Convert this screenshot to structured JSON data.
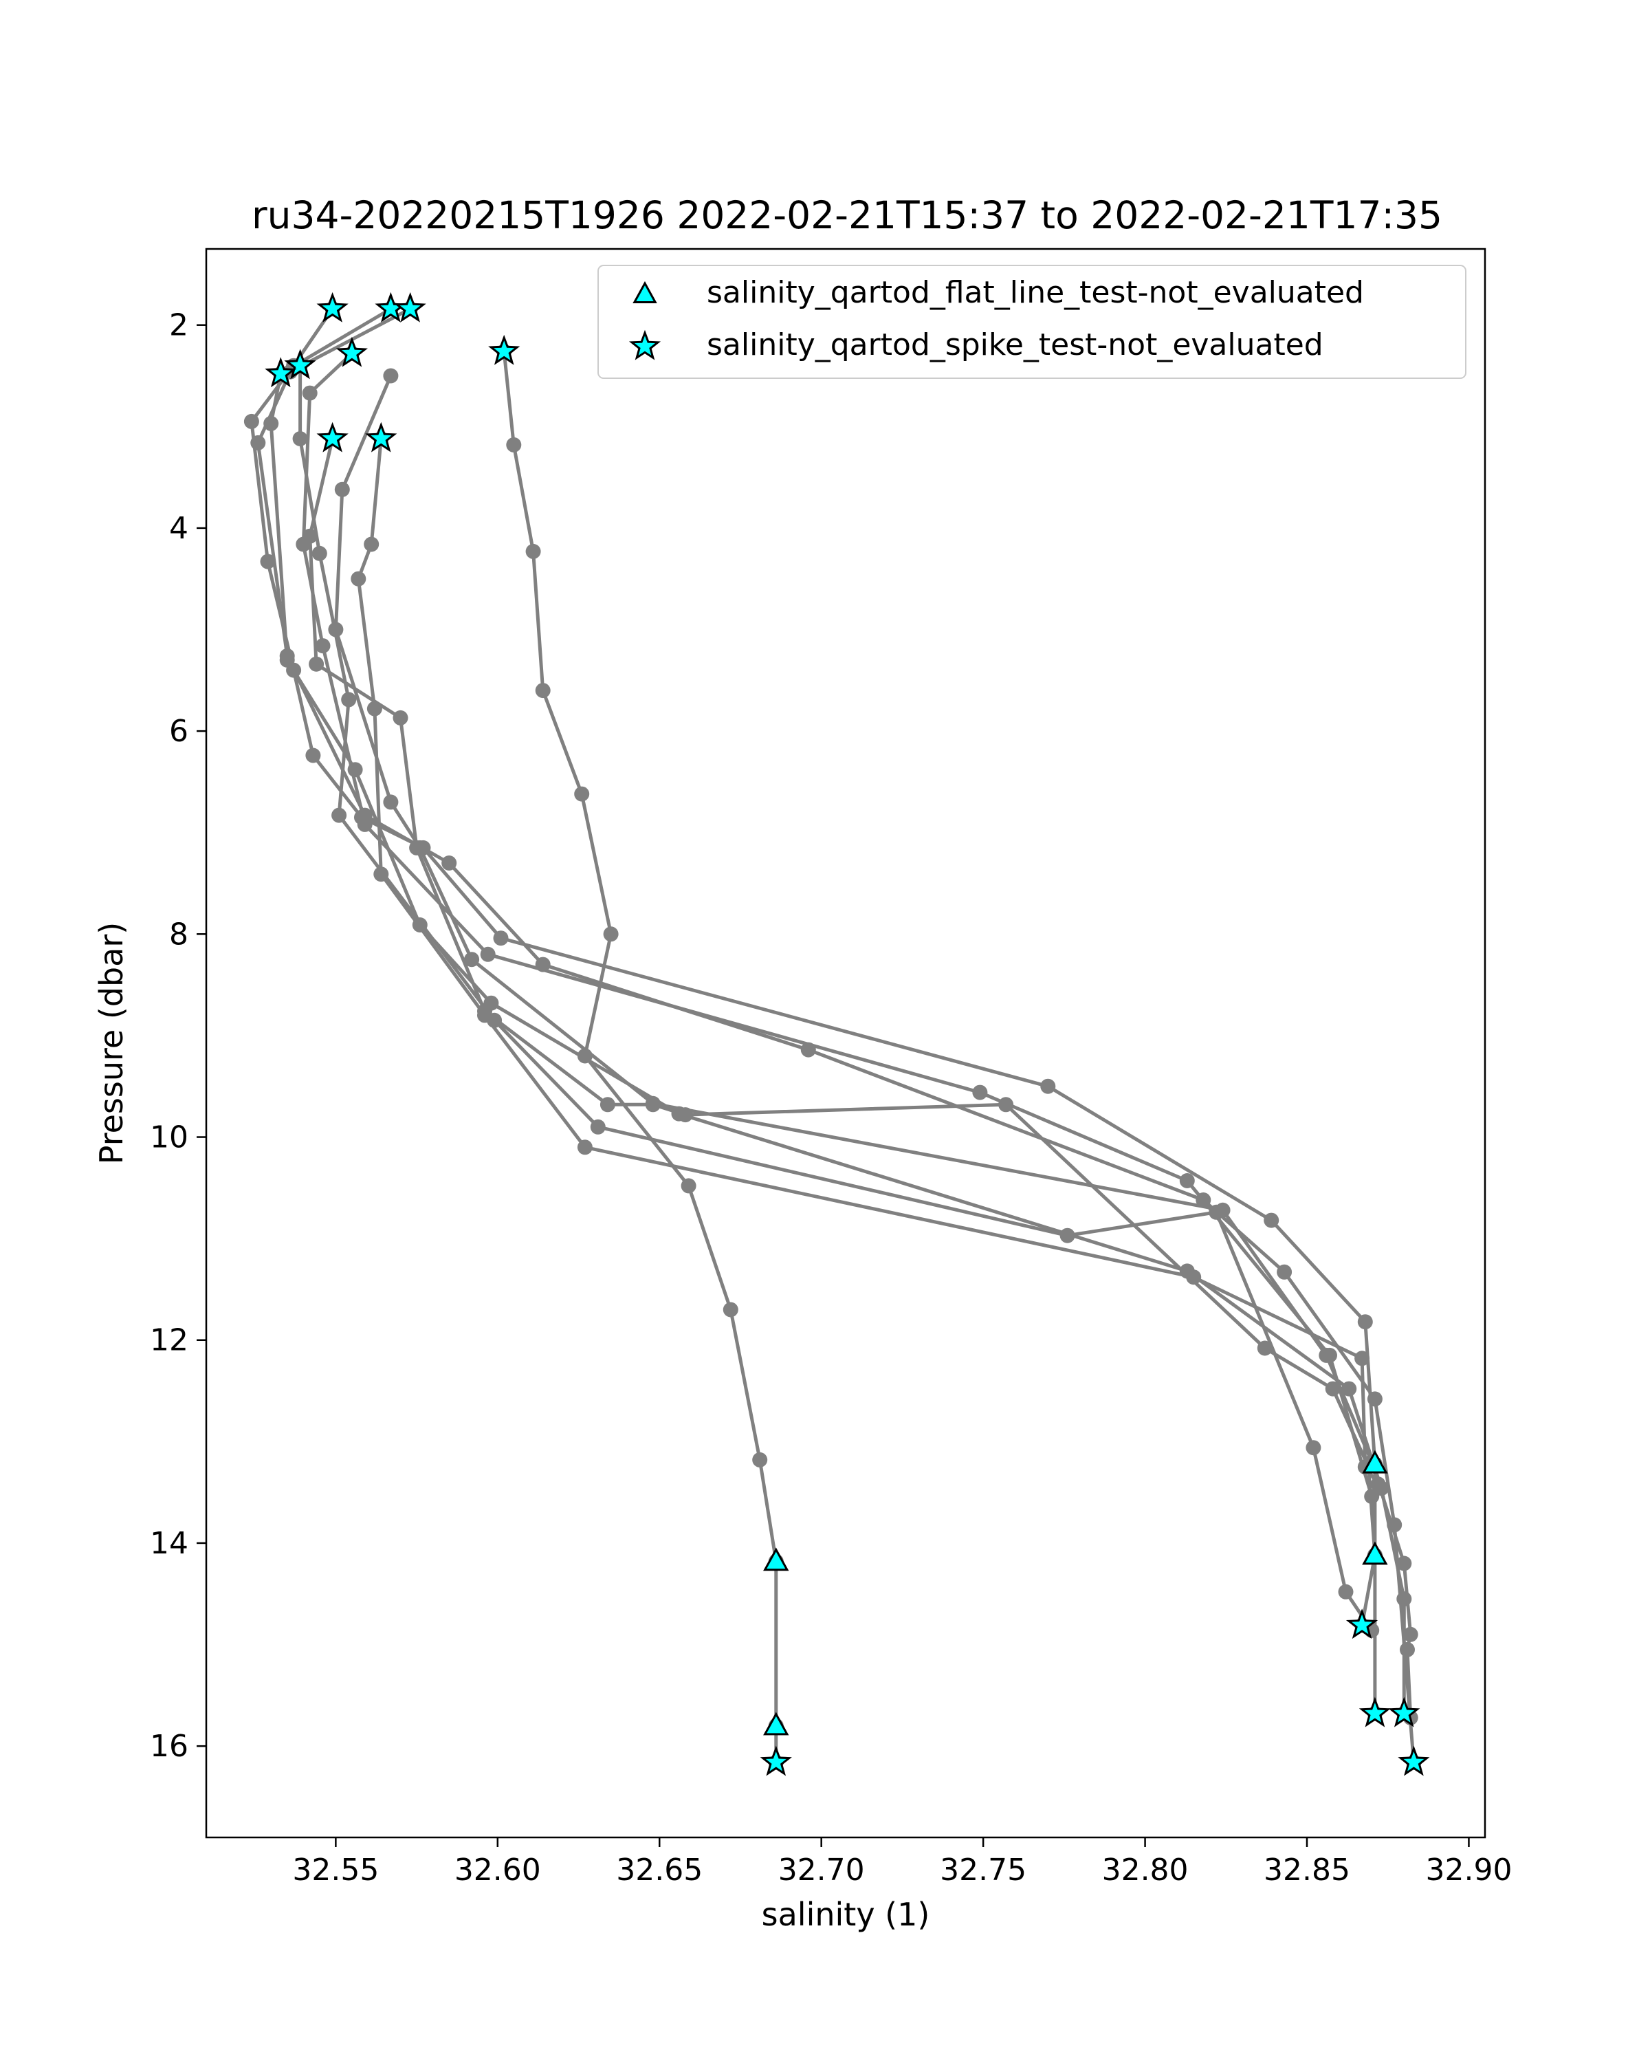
{
  "chart_data": {
    "type": "line",
    "title": "ru34-20220215T1926 2022-02-21T15:37 to 2022-02-21T17:35",
    "xlabel": "salinity (1)",
    "ylabel": "Pressure (dbar)",
    "xlim": [
      32.51,
      32.905
    ],
    "ylim": [
      16.9,
      1.25
    ],
    "y_inverted": true,
    "grid": false,
    "legend_placement": "top-right",
    "xticks": [
      32.55,
      32.6,
      32.65,
      32.7,
      32.75,
      32.8,
      32.85,
      32.9
    ],
    "xtick_labels": [
      "32.55",
      "32.60",
      "32.65",
      "32.70",
      "32.75",
      "32.80",
      "32.85",
      "32.90"
    ],
    "yticks": [
      2,
      4,
      6,
      8,
      10,
      12,
      14,
      16
    ],
    "ytick_labels": [
      "2",
      "4",
      "6",
      "8",
      "10",
      "12",
      "14",
      "16"
    ],
    "colors": {
      "profile_line": "#808080",
      "marker_fill": "#00ffff",
      "marker_edge": "#000000"
    },
    "legend": [
      {
        "label": "salinity_qartod_flat_line_test-not_evaluated",
        "marker": "triangle"
      },
      {
        "label": "salinity_qartod_spike_test-not_evaluated",
        "marker": "star"
      }
    ],
    "series": [
      {
        "values": [
          [
            32.549,
            1.84
          ],
          [
            32.537,
            2.4
          ],
          [
            32.524,
            2.95
          ],
          [
            32.529,
            4.33
          ],
          [
            32.537,
            5.4
          ],
          [
            32.543,
            6.24
          ],
          [
            32.558,
            6.85
          ],
          [
            32.577,
            7.15
          ],
          [
            32.601,
            8.04
          ],
          [
            32.77,
            9.5
          ],
          [
            32.839,
            10.82
          ],
          [
            32.868,
            11.82
          ],
          [
            32.871,
            13.22
          ],
          [
            32.871,
            15.68
          ]
        ]
      },
      {
        "values": [
          [
            32.567,
            1.84
          ],
          [
            32.533,
            2.48
          ],
          [
            32.53,
            2.97
          ],
          [
            32.535,
            5.3
          ],
          [
            32.556,
            6.38
          ],
          [
            32.576,
            7.91
          ],
          [
            32.598,
            8.68
          ],
          [
            32.656,
            9.77
          ],
          [
            32.813,
            11.32
          ],
          [
            32.863,
            12.48
          ],
          [
            32.873,
            13.46
          ],
          [
            32.88,
            14.55
          ],
          [
            32.88,
            15.68
          ]
        ]
      },
      {
        "values": [
          [
            32.573,
            1.84
          ],
          [
            32.536,
            2.46
          ],
          [
            32.526,
            3.16
          ],
          [
            32.535,
            5.26
          ],
          [
            32.559,
            6.83
          ],
          [
            32.585,
            7.3
          ],
          [
            32.614,
            8.3
          ],
          [
            32.696,
            9.14
          ],
          [
            32.818,
            10.62
          ],
          [
            32.843,
            11.33
          ],
          [
            32.871,
            12.58
          ],
          [
            32.877,
            13.82
          ],
          [
            32.883,
            16.16
          ]
        ]
      },
      {
        "values": [
          [
            32.555,
            2.28
          ],
          [
            32.542,
            2.67
          ],
          [
            32.54,
            4.16
          ],
          [
            32.546,
            5.16
          ],
          [
            32.559,
            6.92
          ],
          [
            32.597,
            8.2
          ],
          [
            32.749,
            9.56
          ],
          [
            32.813,
            10.43
          ],
          [
            32.857,
            12.15
          ],
          [
            32.87,
            13.54
          ],
          [
            32.871,
            14.12
          ]
        ]
      },
      {
        "values": [
          [
            32.567,
            2.5
          ],
          [
            32.552,
            3.62
          ],
          [
            32.55,
            5.0
          ],
          [
            32.567,
            6.7
          ],
          [
            32.576,
            7.15
          ],
          [
            32.592,
            8.25
          ],
          [
            32.648,
            9.67
          ],
          [
            32.824,
            10.72
          ],
          [
            32.856,
            12.15
          ],
          [
            32.87,
            13.2
          ],
          [
            32.88,
            14.2
          ],
          [
            32.882,
            14.9
          ],
          [
            32.881,
            15.05
          ],
          [
            32.882,
            15.72
          ]
        ]
      },
      {
        "values": [
          [
            32.539,
            2.4
          ],
          [
            32.539,
            3.12
          ],
          [
            32.545,
            4.25
          ],
          [
            32.554,
            5.69
          ],
          [
            32.551,
            6.83
          ],
          [
            32.599,
            8.85
          ],
          [
            32.631,
            9.9
          ],
          [
            32.776,
            10.97
          ],
          [
            32.822,
            10.74
          ],
          [
            32.852,
            13.06
          ],
          [
            32.862,
            14.48
          ],
          [
            32.87,
            14.86
          ]
        ]
      },
      {
        "values": [
          [
            32.549,
            3.12
          ],
          [
            32.542,
            4.08
          ],
          [
            32.544,
            5.34
          ],
          [
            32.57,
            5.87
          ],
          [
            32.575,
            7.15
          ],
          [
            32.596,
            8.76
          ],
          [
            32.634,
            9.68
          ],
          [
            32.648,
            9.68
          ],
          [
            32.658,
            9.78
          ],
          [
            32.757,
            9.68
          ],
          [
            32.837,
            12.08
          ],
          [
            32.858,
            12.48
          ],
          [
            32.869,
            13.25
          ],
          [
            32.871,
            14.12
          ],
          [
            32.867,
            14.81
          ]
        ]
      },
      {
        "values": [
          [
            32.564,
            3.12
          ],
          [
            32.561,
            4.16
          ],
          [
            32.557,
            4.5
          ],
          [
            32.562,
            5.78
          ],
          [
            32.564,
            7.41
          ],
          [
            32.596,
            8.8
          ],
          [
            32.627,
            10.1
          ],
          [
            32.815,
            11.38
          ],
          [
            32.867,
            12.18
          ],
          [
            32.868,
            13.25
          ],
          [
            32.872,
            13.42
          ]
        ]
      },
      {
        "values": [
          [
            32.602,
            2.26
          ],
          [
            32.605,
            3.18
          ],
          [
            32.611,
            4.23
          ],
          [
            32.614,
            5.6
          ],
          [
            32.626,
            6.62
          ],
          [
            32.635,
            8.0
          ],
          [
            32.627,
            9.2
          ],
          [
            32.659,
            10.48
          ],
          [
            32.672,
            11.7
          ],
          [
            32.681,
            13.18
          ],
          [
            32.686,
            14.18
          ],
          [
            32.686,
            15.8
          ],
          [
            32.686,
            16.16
          ]
        ]
      }
    ],
    "flat_line_markers": [
      [
        32.686,
        14.18
      ],
      [
        32.686,
        15.8
      ],
      [
        32.871,
        13.22
      ],
      [
        32.871,
        14.12
      ]
    ],
    "spike_markers": [
      [
        32.549,
        1.84
      ],
      [
        32.567,
        1.84
      ],
      [
        32.573,
        1.84
      ],
      [
        32.555,
        2.28
      ],
      [
        32.602,
        2.26
      ],
      [
        32.539,
        2.4
      ],
      [
        32.533,
        2.48
      ],
      [
        32.549,
        3.12
      ],
      [
        32.564,
        3.12
      ],
      [
        32.686,
        16.16
      ],
      [
        32.867,
        14.81
      ],
      [
        32.871,
        15.68
      ],
      [
        32.88,
        15.68
      ],
      [
        32.883,
        16.16
      ]
    ]
  }
}
